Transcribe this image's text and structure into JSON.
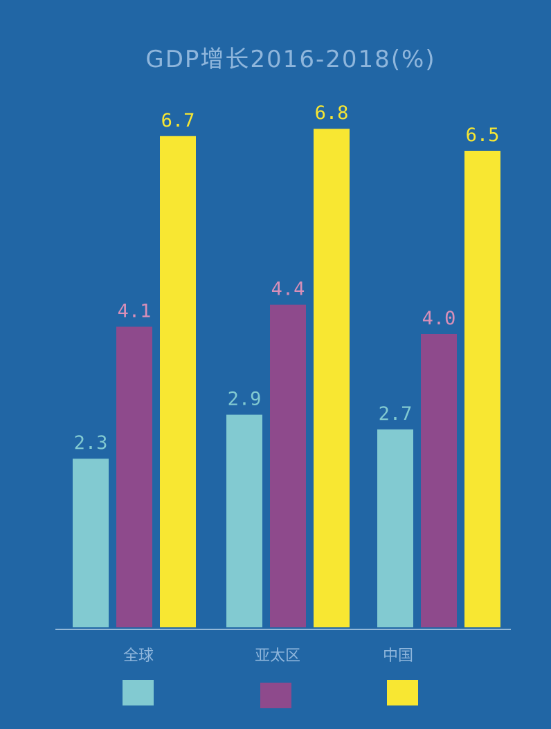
{
  "chart_data": {
    "type": "bar",
    "title": "GDP增长2016-2018(%)",
    "categories": [
      "全球",
      "亚太区",
      "中国"
    ],
    "series": [
      {
        "values": [
          2.3,
          2.9,
          2.7
        ],
        "color": "#82cad1",
        "label_color": "#82cad1"
      },
      {
        "values": [
          4.1,
          4.4,
          4.0
        ],
        "color": "#8e4a8c",
        "label_color": "#d98fb8"
      },
      {
        "values": [
          6.7,
          6.8,
          6.5
        ],
        "color": "#f8e732",
        "label_color": "#f8e732"
      }
    ],
    "xlabel": "",
    "ylabel": "",
    "ylim": [
      0,
      8.5
    ],
    "grid": false,
    "legend": "bottom",
    "background": "#2166a5"
  }
}
